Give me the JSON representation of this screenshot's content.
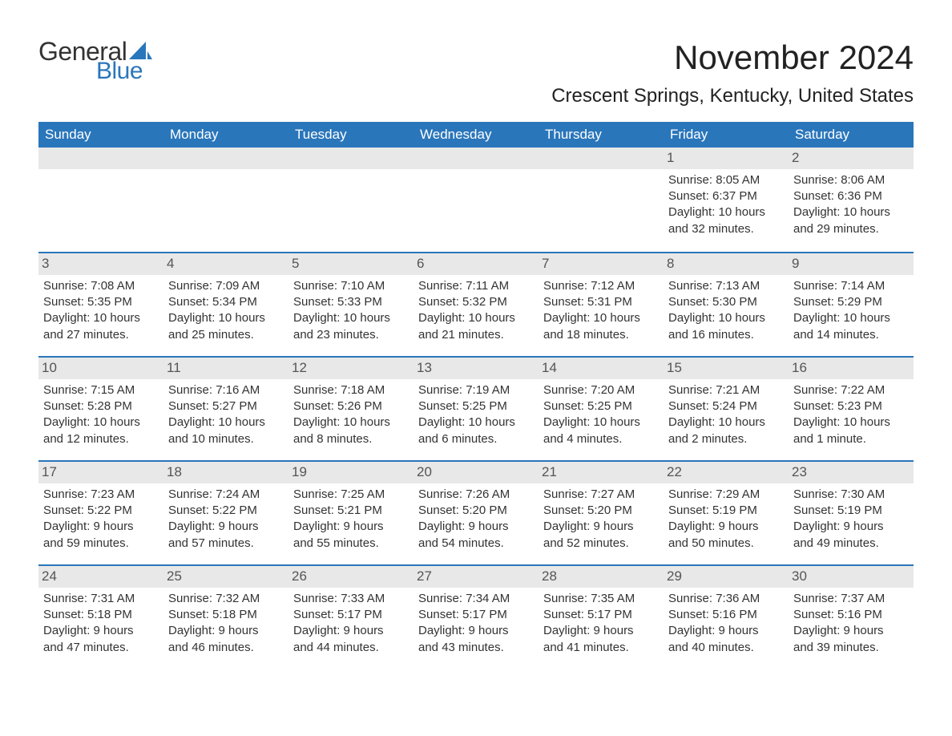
{
  "brand": {
    "logo_word1": "General",
    "logo_word2": "Blue",
    "logo_color_dark": "#333333",
    "logo_color_blue": "#2a76bb"
  },
  "header": {
    "month_title": "November 2024",
    "location": "Crescent Springs, Kentucky, United States"
  },
  "style": {
    "header_bg": "#2a76bb",
    "header_text": "#ffffff",
    "week_border": "#2a76bb",
    "daynum_bg": "#e8e8e8",
    "daynum_text": "#555555",
    "body_text": "#333333",
    "page_bg": "#ffffff",
    "title_fontsize": 42,
    "location_fontsize": 24,
    "weekday_fontsize": 17,
    "cell_fontsize": 15
  },
  "calendar": {
    "type": "table",
    "weekdays": [
      "Sunday",
      "Monday",
      "Tuesday",
      "Wednesday",
      "Thursday",
      "Friday",
      "Saturday"
    ],
    "weeks": [
      [
        null,
        null,
        null,
        null,
        null,
        {
          "d": "1",
          "sr": "Sunrise: 8:05 AM",
          "ss": "Sunset: 6:37 PM",
          "dl1": "Daylight: 10 hours",
          "dl2": "and 32 minutes."
        },
        {
          "d": "2",
          "sr": "Sunrise: 8:06 AM",
          "ss": "Sunset: 6:36 PM",
          "dl1": "Daylight: 10 hours",
          "dl2": "and 29 minutes."
        }
      ],
      [
        {
          "d": "3",
          "sr": "Sunrise: 7:08 AM",
          "ss": "Sunset: 5:35 PM",
          "dl1": "Daylight: 10 hours",
          "dl2": "and 27 minutes."
        },
        {
          "d": "4",
          "sr": "Sunrise: 7:09 AM",
          "ss": "Sunset: 5:34 PM",
          "dl1": "Daylight: 10 hours",
          "dl2": "and 25 minutes."
        },
        {
          "d": "5",
          "sr": "Sunrise: 7:10 AM",
          "ss": "Sunset: 5:33 PM",
          "dl1": "Daylight: 10 hours",
          "dl2": "and 23 minutes."
        },
        {
          "d": "6",
          "sr": "Sunrise: 7:11 AM",
          "ss": "Sunset: 5:32 PM",
          "dl1": "Daylight: 10 hours",
          "dl2": "and 21 minutes."
        },
        {
          "d": "7",
          "sr": "Sunrise: 7:12 AM",
          "ss": "Sunset: 5:31 PM",
          "dl1": "Daylight: 10 hours",
          "dl2": "and 18 minutes."
        },
        {
          "d": "8",
          "sr": "Sunrise: 7:13 AM",
          "ss": "Sunset: 5:30 PM",
          "dl1": "Daylight: 10 hours",
          "dl2": "and 16 minutes."
        },
        {
          "d": "9",
          "sr": "Sunrise: 7:14 AM",
          "ss": "Sunset: 5:29 PM",
          "dl1": "Daylight: 10 hours",
          "dl2": "and 14 minutes."
        }
      ],
      [
        {
          "d": "10",
          "sr": "Sunrise: 7:15 AM",
          "ss": "Sunset: 5:28 PM",
          "dl1": "Daylight: 10 hours",
          "dl2": "and 12 minutes."
        },
        {
          "d": "11",
          "sr": "Sunrise: 7:16 AM",
          "ss": "Sunset: 5:27 PM",
          "dl1": "Daylight: 10 hours",
          "dl2": "and 10 minutes."
        },
        {
          "d": "12",
          "sr": "Sunrise: 7:18 AM",
          "ss": "Sunset: 5:26 PM",
          "dl1": "Daylight: 10 hours",
          "dl2": "and 8 minutes."
        },
        {
          "d": "13",
          "sr": "Sunrise: 7:19 AM",
          "ss": "Sunset: 5:25 PM",
          "dl1": "Daylight: 10 hours",
          "dl2": "and 6 minutes."
        },
        {
          "d": "14",
          "sr": "Sunrise: 7:20 AM",
          "ss": "Sunset: 5:25 PM",
          "dl1": "Daylight: 10 hours",
          "dl2": "and 4 minutes."
        },
        {
          "d": "15",
          "sr": "Sunrise: 7:21 AM",
          "ss": "Sunset: 5:24 PM",
          "dl1": "Daylight: 10 hours",
          "dl2": "and 2 minutes."
        },
        {
          "d": "16",
          "sr": "Sunrise: 7:22 AM",
          "ss": "Sunset: 5:23 PM",
          "dl1": "Daylight: 10 hours",
          "dl2": "and 1 minute."
        }
      ],
      [
        {
          "d": "17",
          "sr": "Sunrise: 7:23 AM",
          "ss": "Sunset: 5:22 PM",
          "dl1": "Daylight: 9 hours",
          "dl2": "and 59 minutes."
        },
        {
          "d": "18",
          "sr": "Sunrise: 7:24 AM",
          "ss": "Sunset: 5:22 PM",
          "dl1": "Daylight: 9 hours",
          "dl2": "and 57 minutes."
        },
        {
          "d": "19",
          "sr": "Sunrise: 7:25 AM",
          "ss": "Sunset: 5:21 PM",
          "dl1": "Daylight: 9 hours",
          "dl2": "and 55 minutes."
        },
        {
          "d": "20",
          "sr": "Sunrise: 7:26 AM",
          "ss": "Sunset: 5:20 PM",
          "dl1": "Daylight: 9 hours",
          "dl2": "and 54 minutes."
        },
        {
          "d": "21",
          "sr": "Sunrise: 7:27 AM",
          "ss": "Sunset: 5:20 PM",
          "dl1": "Daylight: 9 hours",
          "dl2": "and 52 minutes."
        },
        {
          "d": "22",
          "sr": "Sunrise: 7:29 AM",
          "ss": "Sunset: 5:19 PM",
          "dl1": "Daylight: 9 hours",
          "dl2": "and 50 minutes."
        },
        {
          "d": "23",
          "sr": "Sunrise: 7:30 AM",
          "ss": "Sunset: 5:19 PM",
          "dl1": "Daylight: 9 hours",
          "dl2": "and 49 minutes."
        }
      ],
      [
        {
          "d": "24",
          "sr": "Sunrise: 7:31 AM",
          "ss": "Sunset: 5:18 PM",
          "dl1": "Daylight: 9 hours",
          "dl2": "and 47 minutes."
        },
        {
          "d": "25",
          "sr": "Sunrise: 7:32 AM",
          "ss": "Sunset: 5:18 PM",
          "dl1": "Daylight: 9 hours",
          "dl2": "and 46 minutes."
        },
        {
          "d": "26",
          "sr": "Sunrise: 7:33 AM",
          "ss": "Sunset: 5:17 PM",
          "dl1": "Daylight: 9 hours",
          "dl2": "and 44 minutes."
        },
        {
          "d": "27",
          "sr": "Sunrise: 7:34 AM",
          "ss": "Sunset: 5:17 PM",
          "dl1": "Daylight: 9 hours",
          "dl2": "and 43 minutes."
        },
        {
          "d": "28",
          "sr": "Sunrise: 7:35 AM",
          "ss": "Sunset: 5:17 PM",
          "dl1": "Daylight: 9 hours",
          "dl2": "and 41 minutes."
        },
        {
          "d": "29",
          "sr": "Sunrise: 7:36 AM",
          "ss": "Sunset: 5:16 PM",
          "dl1": "Daylight: 9 hours",
          "dl2": "and 40 minutes."
        },
        {
          "d": "30",
          "sr": "Sunrise: 7:37 AM",
          "ss": "Sunset: 5:16 PM",
          "dl1": "Daylight: 9 hours",
          "dl2": "and 39 minutes."
        }
      ]
    ]
  }
}
